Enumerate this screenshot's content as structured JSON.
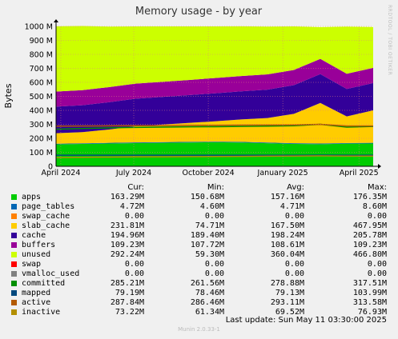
{
  "chart_data": {
    "type": "area",
    "title": "Memory usage - by year",
    "ylabel": "Bytes",
    "xlabel": "",
    "ylim": [
      0,
      1000000000
    ],
    "y_ticks": [
      "0",
      "100 M",
      "200 M",
      "300 M",
      "400 M",
      "500 M",
      "600 M",
      "700 M",
      "800 M",
      "900 M",
      "1000 M"
    ],
    "x_ticks": [
      "April 2024",
      "July 2024",
      "October 2024",
      "January 2025",
      "April 2025"
    ],
    "grid": true,
    "series": [
      {
        "name": "apps",
        "color": "#00cc00",
        "values": [
          157,
          160,
          163,
          166,
          168,
          170,
          172,
          170,
          165,
          160,
          158,
          162,
          163
        ]
      },
      {
        "name": "page_tables",
        "color": "#0066b3",
        "values": [
          4.6,
          4.6,
          4.6,
          4.7,
          4.7,
          4.7,
          4.7,
          4.8,
          4.8,
          4.8,
          5,
          4.7,
          4.7
        ]
      },
      {
        "name": "swap_cache",
        "color": "#ff8000",
        "values": [
          0,
          0,
          0,
          0,
          0,
          0,
          0,
          0,
          0,
          0,
          0,
          0,
          0
        ]
      },
      {
        "name": "slab_cache",
        "color": "#ffcc00",
        "values": [
          75,
          80,
          95,
          115,
          125,
          135,
          145,
          160,
          175,
          210,
          290,
          190,
          232
        ]
      },
      {
        "name": "cache",
        "color": "#330099",
        "values": [
          190,
          192,
          195,
          197,
          198,
          199,
          200,
          201,
          203,
          205,
          206,
          196,
          195
        ]
      },
      {
        "name": "buffers",
        "color": "#990099",
        "values": [
          108,
          108,
          108,
          108,
          108,
          108,
          109,
          109,
          109,
          109,
          109,
          109,
          109
        ]
      },
      {
        "name": "unused",
        "color": "#ccff00",
        "values": [
          466,
          458,
          433,
          409,
          396,
          383,
          369,
          356,
          342,
          311,
          227,
          337,
          292
        ]
      },
      {
        "name": "swap",
        "color": "#ff0000",
        "values": [
          0,
          0,
          0,
          0,
          0,
          0,
          0,
          0,
          0,
          0,
          0,
          0,
          0
        ]
      },
      {
        "name": "vmalloc_used",
        "color": "#808080",
        "values": [
          0,
          0,
          0,
          0,
          0,
          0,
          0,
          0,
          0,
          0,
          0,
          0,
          0
        ]
      },
      {
        "name": "committed",
        "color": "#008f00",
        "values": [
          265,
          270,
          275,
          278,
          280,
          282,
          283,
          285,
          287,
          290,
          300,
          280,
          285
        ]
      },
      {
        "name": "mapped",
        "color": "#00487d",
        "values": [
          79,
          79,
          79,
          79,
          79,
          79,
          79,
          79,
          79,
          79,
          80,
          79,
          79
        ]
      },
      {
        "name": "active",
        "color": "#b35a00",
        "values": [
          287,
          288,
          289,
          290,
          291,
          292,
          293,
          294,
          295,
          296,
          300,
          288,
          288
        ]
      },
      {
        "name": "inactive",
        "color": "#b38f00",
        "values": [
          62,
          64,
          66,
          68,
          68,
          69,
          70,
          71,
          72,
          73,
          74,
          73,
          73
        ]
      }
    ]
  },
  "legend": {
    "headers": {
      "cur": "Cur:",
      "min": "Min:",
      "avg": "Avg:",
      "max": "Max:"
    },
    "rows": [
      {
        "name": "apps",
        "color": "#00cc00",
        "cur": "163.29M",
        "min": "150.68M",
        "avg": "157.16M",
        "max": "176.35M"
      },
      {
        "name": "page_tables",
        "color": "#0066b3",
        "cur": "4.72M",
        "min": "4.60M",
        "avg": "4.71M",
        "max": "8.60M"
      },
      {
        "name": "swap_cache",
        "color": "#ff8000",
        "cur": "0.00",
        "min": "0.00",
        "avg": "0.00",
        "max": "0.00"
      },
      {
        "name": "slab_cache",
        "color": "#ffcc00",
        "cur": "231.81M",
        "min": "74.71M",
        "avg": "167.50M",
        "max": "467.95M"
      },
      {
        "name": "cache",
        "color": "#330099",
        "cur": "194.96M",
        "min": "189.40M",
        "avg": "198.24M",
        "max": "205.78M"
      },
      {
        "name": "buffers",
        "color": "#990099",
        "cur": "109.23M",
        "min": "107.72M",
        "avg": "108.61M",
        "max": "109.23M"
      },
      {
        "name": "unused",
        "color": "#ccff00",
        "cur": "292.24M",
        "min": "59.30M",
        "avg": "360.04M",
        "max": "466.80M"
      },
      {
        "name": "swap",
        "color": "#ff0000",
        "cur": "0.00",
        "min": "0.00",
        "avg": "0.00",
        "max": "0.00"
      },
      {
        "name": "vmalloc_used",
        "color": "#808080",
        "cur": "0.00",
        "min": "0.00",
        "avg": "0.00",
        "max": "0.00"
      },
      {
        "name": "committed",
        "color": "#008f00",
        "cur": "285.21M",
        "min": "261.56M",
        "avg": "278.88M",
        "max": "317.51M"
      },
      {
        "name": "mapped",
        "color": "#00487d",
        "cur": "79.19M",
        "min": "78.46M",
        "avg": "79.13M",
        "max": "103.99M"
      },
      {
        "name": "active",
        "color": "#b35a00",
        "cur": "287.84M",
        "min": "286.46M",
        "avg": "293.11M",
        "max": "313.58M"
      },
      {
        "name": "inactive",
        "color": "#b38f00",
        "cur": "73.22M",
        "min": "61.34M",
        "avg": "69.52M",
        "max": "76.93M"
      }
    ]
  },
  "last_update": "Last update:  Sun May 11 03:30:00 2025",
  "version": "Munin 2.0.33-1",
  "side_text": "RRDTOOL / TOBI OETIKER"
}
